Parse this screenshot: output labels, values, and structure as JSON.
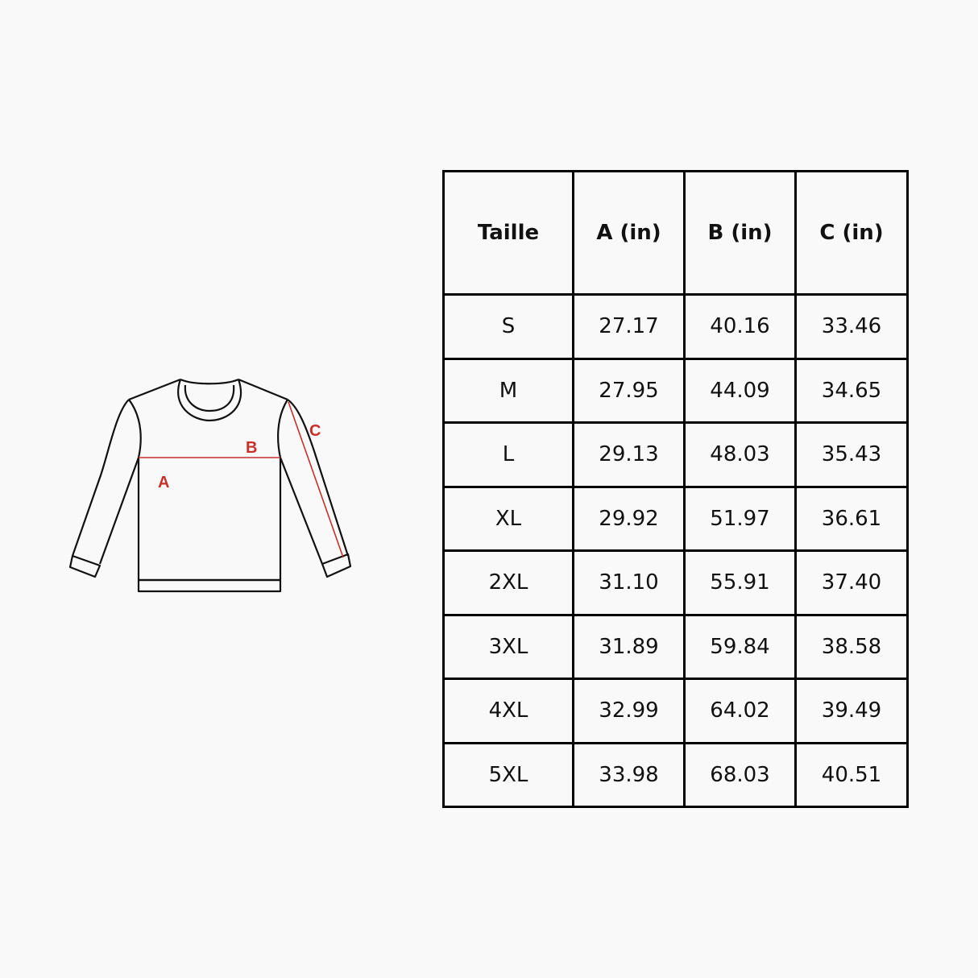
{
  "diagram": {
    "labels": {
      "a": "A",
      "b": "B",
      "c": "C"
    },
    "measure_color": "#c8302a"
  },
  "size_table": {
    "headers": [
      "Taille",
      "A (in)",
      "B (in)",
      "C (in)"
    ],
    "rows": [
      [
        "S",
        "27.17",
        "40.16",
        "33.46"
      ],
      [
        "M",
        "27.95",
        "44.09",
        "34.65"
      ],
      [
        "L",
        "29.13",
        "48.03",
        "35.43"
      ],
      [
        "XL",
        "29.92",
        "51.97",
        "36.61"
      ],
      [
        "2XL",
        "31.10",
        "55.91",
        "37.40"
      ],
      [
        "3XL",
        "31.89",
        "59.84",
        "38.58"
      ],
      [
        "4XL",
        "32.99",
        "64.02",
        "39.49"
      ],
      [
        "5XL",
        "33.98",
        "68.03",
        "40.51"
      ]
    ]
  }
}
